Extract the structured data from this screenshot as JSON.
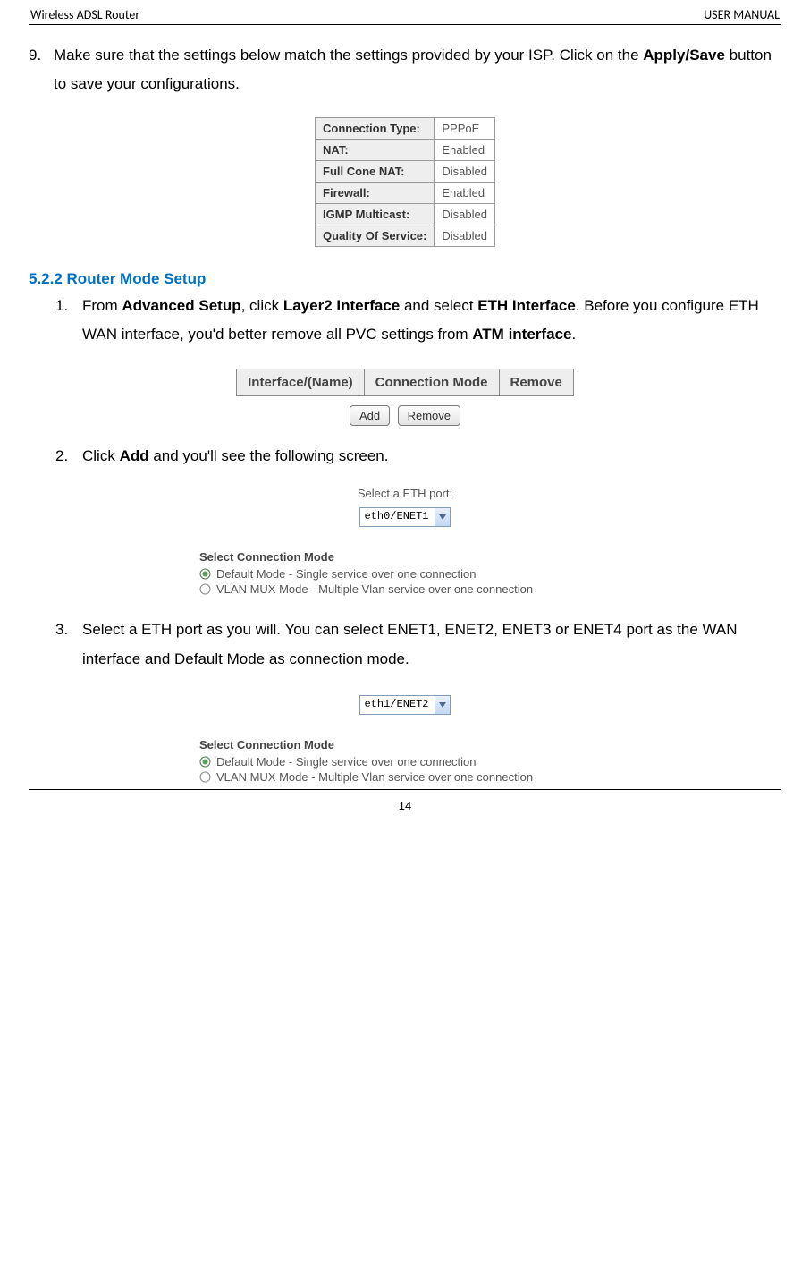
{
  "header": {
    "left": "Wireless ADSL Router",
    "right": "USER MANUAL"
  },
  "step9": {
    "number": "9.",
    "prefix": "Make sure that the settings below match the settings provided by your ISP. Click on the ",
    "bold": "Apply/Save",
    "suffix": " button to save your configurations."
  },
  "settings_table": {
    "rows": [
      {
        "label": "Connection Type:",
        "value": "PPPoE"
      },
      {
        "label": "NAT:",
        "value": "Enabled"
      },
      {
        "label": "Full Cone NAT:",
        "value": "Disabled"
      },
      {
        "label": "Firewall:",
        "value": "Enabled"
      },
      {
        "label": "IGMP Multicast:",
        "value": "Disabled"
      },
      {
        "label": "Quality Of Service:",
        "value": "Disabled"
      }
    ]
  },
  "section_heading": "5.2.2 Router Mode Setup",
  "step1": {
    "number": "1.",
    "p1": "From ",
    "b1": "Advanced Setup",
    "p2": ", click ",
    "b2": "Layer2 Interface",
    "p3": " and select ",
    "b3": "ETH Interface",
    "p4": ". Before you configure ETH WAN interface, you'd better remove all PVC settings from ",
    "b4": "ATM interface",
    "p5": "."
  },
  "eth_table": {
    "col1": "Interface/(Name)",
    "col2": "Connection Mode",
    "col3": "Remove"
  },
  "buttons": {
    "add": "Add",
    "remove": "Remove"
  },
  "step2": {
    "number": "2.",
    "p1": "Click ",
    "b1": "Add",
    "p2": " and you'll see the following screen."
  },
  "config1": {
    "select_label": "Select a ETH port:",
    "select_value": "eth0/ENET1",
    "mode_heading": "Select Connection Mode",
    "opt1": "Default Mode - Single service over one connection",
    "opt2": "VLAN MUX Mode - Multiple Vlan service over one connection"
  },
  "step3": {
    "number": "3.",
    "text": "Select a ETH port as you will. You can select ENET1, ENET2, ENET3 or    ENET4 port as the WAN interface and Default Mode as connection mode."
  },
  "config2": {
    "select_value": "eth1/ENET2",
    "mode_heading": "Select Connection Mode",
    "opt1": "Default Mode - Single service over one connection",
    "opt2": "VLAN MUX Mode - Multiple Vlan service over one connection"
  },
  "page_number": "14"
}
